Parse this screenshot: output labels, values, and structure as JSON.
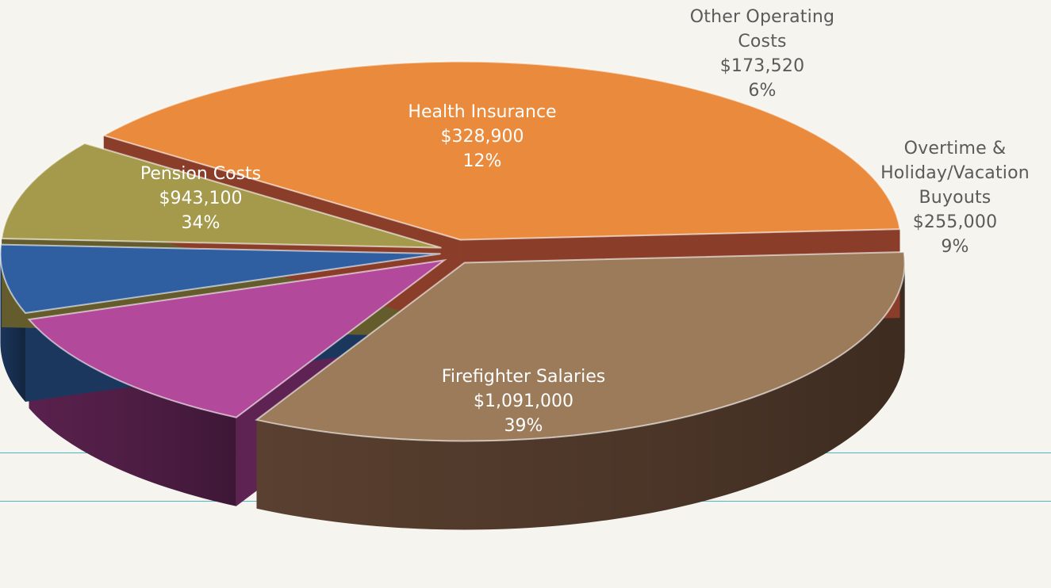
{
  "chart_data": {
    "type": "pie",
    "three_d": true,
    "exploded": true,
    "legend": "none",
    "slices": [
      {
        "label": "Firefighter Salaries",
        "amount": "$1,091,000",
        "pct": "39%",
        "value": 1091000,
        "percent": 39,
        "color": "#ea8a3c",
        "side_color": "#8a3e2a",
        "key": "firefighter"
      },
      {
        "label": "Pension Costs",
        "amount": "$943,100",
        "pct": "34%",
        "value": 943100,
        "percent": 34,
        "color": "#9c7b5a",
        "side_color": "#5e4332",
        "key": "pension"
      },
      {
        "label": "Health Insurance",
        "amount": "$328,900",
        "pct": "12%",
        "value": 328900,
        "percent": 12,
        "color": "#b2499a",
        "side_color": "#5e2352",
        "key": "health"
      },
      {
        "label": "Other Operating Costs",
        "label_lines": [
          "Other Operating",
          "Costs"
        ],
        "amount": "$173,520",
        "pct": "6%",
        "value": 173520,
        "percent": 6,
        "color": "#2f5fa0",
        "side_color": "#1c375e",
        "key": "other"
      },
      {
        "label": "Overtime & Holiday/Vacation Buyouts",
        "label_lines": [
          "Overtime &",
          "Holiday/Vacation",
          "Buyouts"
        ],
        "amount": "$255,000",
        "pct": "9%",
        "value": 255000,
        "percent": 9,
        "color": "#a59a4c",
        "side_color": "#645c2c",
        "key": "overtime"
      }
    ]
  }
}
